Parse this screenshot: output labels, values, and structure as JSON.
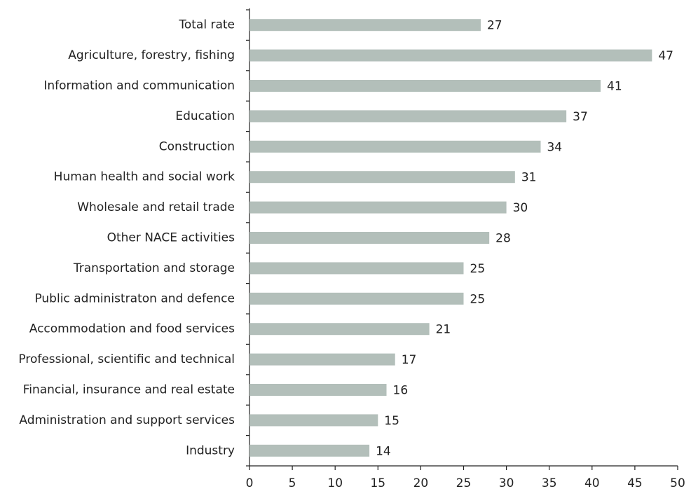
{
  "chart_data": {
    "type": "barh",
    "categories": [
      "Total rate",
      "Agriculture, forestry, fishing",
      "Information and communication",
      "Education",
      "Construction",
      "Human health and social work",
      "Wholesale and retail trade",
      "Other NACE activities",
      "Transportation and storage",
      "Public administraton and defence",
      "Accommodation and food services",
      "Professional, scientific and technical",
      "Financial, insurance and real estate",
      "Administration and support services",
      "Industry"
    ],
    "values": [
      27,
      47,
      41,
      37,
      34,
      31,
      30,
      28,
      25,
      25,
      21,
      17,
      16,
      15,
      14
    ],
    "color": "#b3bfba",
    "xlim": [
      0,
      50
    ],
    "xticks": [
      0,
      5,
      10,
      15,
      20,
      25,
      30,
      35,
      40,
      45,
      50
    ]
  }
}
